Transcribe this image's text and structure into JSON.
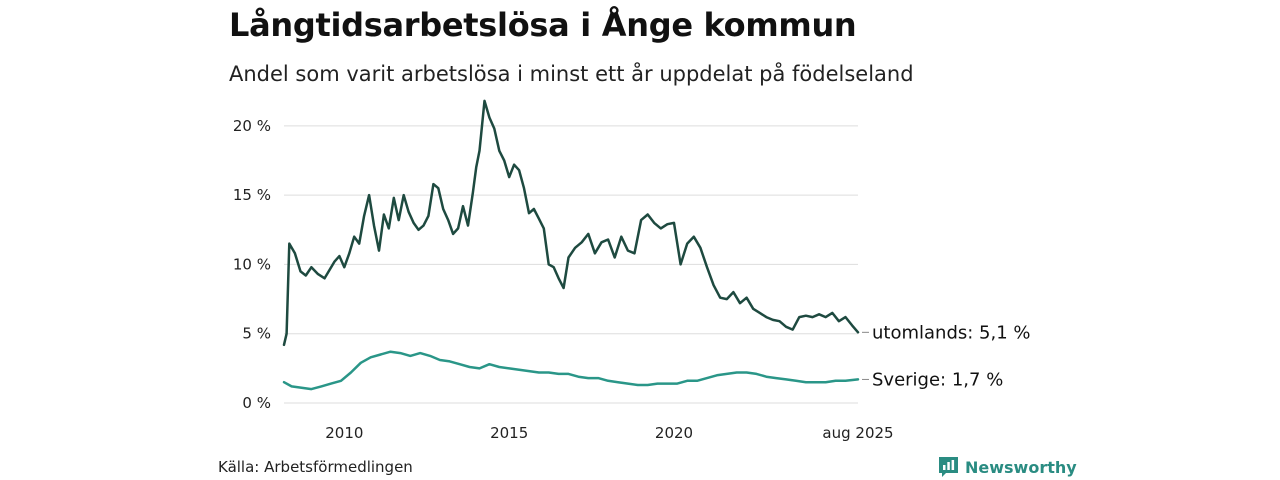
{
  "title": "Långtidsarbetslösa i Ånge kommun",
  "subtitle": "Andel som varit arbetslösa i minst ett år uppdelat på födelseland",
  "source": "Källa: Arbetsförmedlingen",
  "brand": "Newsworthy",
  "colors": {
    "utomlands": "#1e4a40",
    "sverige": "#2a9688",
    "grid": "#dddddd",
    "brand": "#2a8c82"
  },
  "chart_data": {
    "type": "line",
    "title": "Långtidsarbetslösa i Ånge kommun",
    "subtitle": "Andel som varit arbetslösa i minst ett år uppdelat på födelseland",
    "x_range": [
      2008.17,
      2025.58
    ],
    "ylim": [
      0,
      21
    ],
    "y_ticks": [
      0,
      5,
      10,
      15,
      20
    ],
    "y_tick_labels": [
      "0 %",
      "5 %",
      "10 %",
      "15 %",
      "20 %"
    ],
    "x_ticks": [
      2010,
      2015,
      2020,
      2025.58
    ],
    "x_tick_labels": [
      "2010",
      "2015",
      "2020",
      "aug 2025"
    ],
    "grid": true,
    "series": [
      {
        "name": "utomlands",
        "end_label": "utomlands: 5,1 %",
        "x": [
          2008.17,
          2008.25,
          2008.33,
          2008.5,
          2008.67,
          2008.83,
          2009.0,
          2009.2,
          2009.4,
          2009.55,
          2009.7,
          2009.85,
          2010.0,
          2010.15,
          2010.3,
          2010.45,
          2010.6,
          2010.75,
          2010.9,
          2011.05,
          2011.2,
          2011.35,
          2011.5,
          2011.65,
          2011.8,
          2011.95,
          2012.1,
          2012.25,
          2012.4,
          2012.55,
          2012.7,
          2012.85,
          2013.0,
          2013.15,
          2013.3,
          2013.45,
          2013.6,
          2013.75,
          2013.9,
          2014.0,
          2014.1,
          2014.25,
          2014.4,
          2014.55,
          2014.7,
          2014.85,
          2015.0,
          2015.15,
          2015.3,
          2015.45,
          2015.6,
          2015.75,
          2015.9,
          2016.05,
          2016.2,
          2016.35,
          2016.5,
          2016.65,
          2016.8,
          2017.0,
          2017.2,
          2017.4,
          2017.6,
          2017.8,
          2018.0,
          2018.2,
          2018.4,
          2018.6,
          2018.8,
          2019.0,
          2019.2,
          2019.4,
          2019.6,
          2019.8,
          2020.0,
          2020.2,
          2020.4,
          2020.6,
          2020.8,
          2021.0,
          2021.2,
          2021.4,
          2021.6,
          2021.8,
          2022.0,
          2022.2,
          2022.4,
          2022.6,
          2022.8,
          2023.0,
          2023.2,
          2023.4,
          2023.6,
          2023.8,
          2024.0,
          2024.2,
          2024.4,
          2024.6,
          2024.8,
          2025.0,
          2025.2,
          2025.4,
          2025.58
        ],
        "values": [
          4.2,
          5.0,
          11.5,
          10.8,
          9.5,
          9.2,
          9.8,
          9.3,
          9.0,
          9.6,
          10.2,
          10.6,
          9.8,
          10.8,
          12.0,
          11.5,
          13.5,
          15.0,
          12.8,
          11.0,
          13.6,
          12.6,
          14.8,
          13.2,
          15.0,
          13.8,
          13.0,
          12.5,
          12.8,
          13.5,
          15.8,
          15.5,
          14.0,
          13.2,
          12.2,
          12.6,
          14.2,
          12.8,
          15.2,
          17.0,
          18.2,
          21.8,
          20.6,
          19.8,
          18.2,
          17.5,
          16.3,
          17.2,
          16.8,
          15.5,
          13.7,
          14.0,
          13.3,
          12.6,
          10.0,
          9.8,
          9.0,
          8.3,
          10.5,
          11.2,
          11.6,
          12.2,
          10.8,
          11.6,
          11.8,
          10.5,
          12.0,
          11.0,
          10.8,
          13.2,
          13.6,
          13.0,
          12.6,
          12.9,
          13.0,
          10.0,
          11.5,
          12.0,
          11.2,
          9.8,
          8.5,
          7.6,
          7.5,
          8.0,
          7.2,
          7.6,
          6.8,
          6.5,
          6.2,
          6.0,
          5.9,
          5.5,
          5.3,
          6.2,
          6.3,
          6.2,
          6.4,
          6.2,
          6.5,
          5.9,
          6.2,
          5.6,
          5.1
        ]
      },
      {
        "name": "Sverige",
        "end_label": "Sverige: 1,7 %",
        "x": [
          2008.17,
          2008.4,
          2008.7,
          2009.0,
          2009.3,
          2009.6,
          2009.9,
          2010.2,
          2010.5,
          2010.8,
          2011.1,
          2011.4,
          2011.7,
          2012.0,
          2012.3,
          2012.6,
          2012.9,
          2013.2,
          2013.5,
          2013.8,
          2014.1,
          2014.4,
          2014.7,
          2015.0,
          2015.3,
          2015.6,
          2015.9,
          2016.2,
          2016.5,
          2016.8,
          2017.1,
          2017.4,
          2017.7,
          2018.0,
          2018.3,
          2018.6,
          2018.9,
          2019.2,
          2019.5,
          2019.8,
          2020.1,
          2020.4,
          2020.7,
          2021.0,
          2021.3,
          2021.6,
          2021.9,
          2022.2,
          2022.5,
          2022.8,
          2023.1,
          2023.4,
          2023.7,
          2024.0,
          2024.3,
          2024.6,
          2024.9,
          2025.2,
          2025.58
        ],
        "values": [
          1.5,
          1.2,
          1.1,
          1.0,
          1.2,
          1.4,
          1.6,
          2.2,
          2.9,
          3.3,
          3.5,
          3.7,
          3.6,
          3.4,
          3.6,
          3.4,
          3.1,
          3.0,
          2.8,
          2.6,
          2.5,
          2.8,
          2.6,
          2.5,
          2.4,
          2.3,
          2.2,
          2.2,
          2.1,
          2.1,
          1.9,
          1.8,
          1.8,
          1.6,
          1.5,
          1.4,
          1.3,
          1.3,
          1.4,
          1.4,
          1.4,
          1.6,
          1.6,
          1.8,
          2.0,
          2.1,
          2.2,
          2.2,
          2.1,
          1.9,
          1.8,
          1.7,
          1.6,
          1.5,
          1.5,
          1.5,
          1.6,
          1.6,
          1.7
        ]
      }
    ]
  }
}
